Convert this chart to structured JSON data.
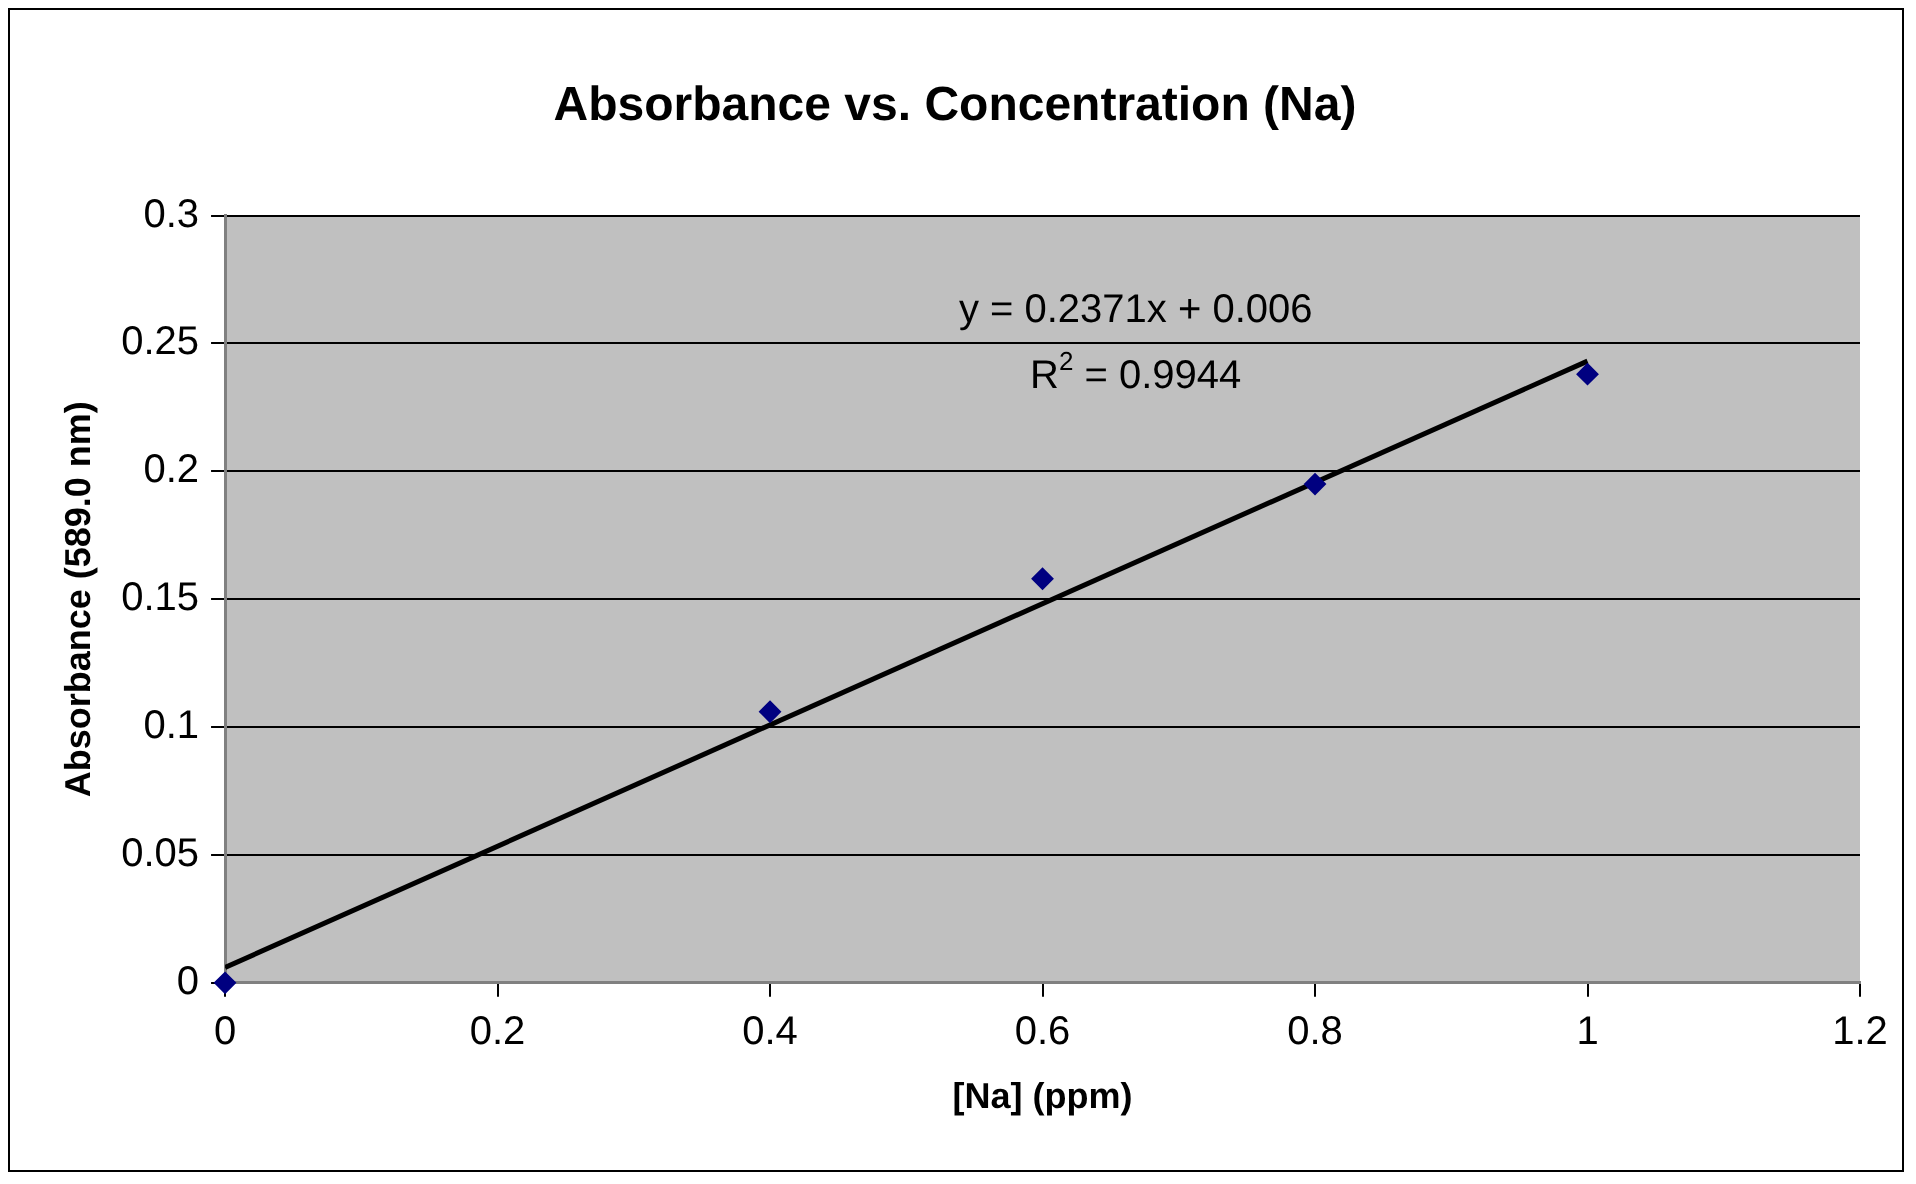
{
  "chart_data": {
    "type": "scatter",
    "title": "Absorbance vs. Concentration (Na)",
    "xlabel": "[Na] (ppm)",
    "ylabel": "Absorbance (589.0 nm)",
    "x": [
      0,
      0.4,
      0.6,
      0.8,
      1
    ],
    "series": [
      {
        "color": "#000080",
        "marker": "diamond",
        "values": [
          0,
          0.106,
          0.158,
          0.195,
          0.238
        ]
      },
      {
        "type": "line",
        "color": "#000000",
        "marker": "none",
        "x": [
          0,
          1
        ],
        "values": [
          0.006,
          0.2431
        ]
      }
    ],
    "xlim": [
      0,
      1.2
    ],
    "xticks": [
      0,
      0.2,
      0.4,
      0.6,
      0.8,
      1,
      1.2
    ],
    "ylim": [
      0,
      0.3
    ],
    "yticks": [
      0,
      0.05,
      0.1,
      0.15,
      0.2,
      0.25,
      0.3
    ],
    "grid": "y",
    "legend": false,
    "line_style": "solid",
    "annotations": [
      "y = 0.2371x + 0.006",
      "R$^{2}$ = 0.9944"
    ]
  }
}
